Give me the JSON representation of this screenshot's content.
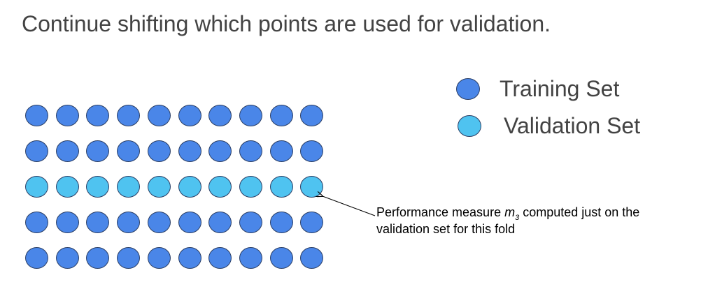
{
  "slide": {
    "title": "Continue shifting which points are used for validation."
  },
  "legend": {
    "training_label": "Training Set",
    "validation_label": "Validation Set"
  },
  "colors": {
    "training": "#4a86e8",
    "validation": "#4fc3f0",
    "outline": "#2b3f66",
    "text": "#434343"
  },
  "grid": {
    "rows": 5,
    "cols": 10,
    "validation_row_index": 2
  },
  "annotation": {
    "prefix": "Performance measure ",
    "variable": "m",
    "subscript": "3",
    "suffix": " computed just on the",
    "line2": "validation set for this fold"
  }
}
